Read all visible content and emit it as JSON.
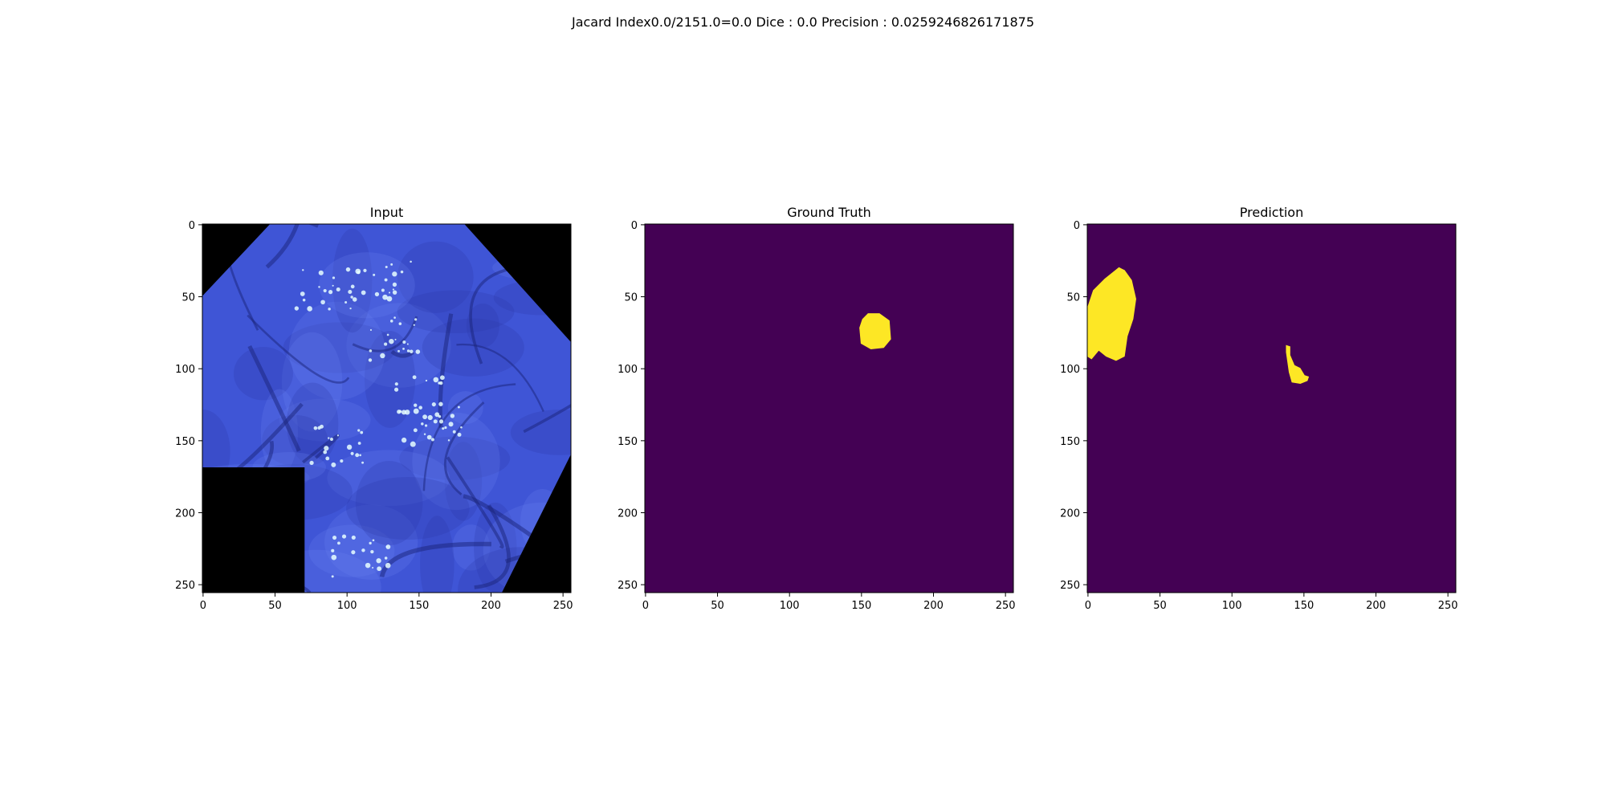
{
  "suptitle": "Jacard Index0.0/2151.0=0.0 Dice : 0.0 Precision : 0.0259246826171875",
  "colors": {
    "background": "#440154",
    "mask": "#fde725",
    "tissue_dark": "#2a36a8",
    "tissue_mid": "#3f55d6",
    "tissue_light": "#6680f0",
    "specular": "#e8ffff",
    "black": "#000000"
  },
  "chart_data": [
    {
      "type": "heatmap",
      "title": "Input",
      "xticks": [
        0,
        50,
        100,
        150,
        200,
        250
      ],
      "yticks": [
        0,
        50,
        100,
        150,
        200,
        250
      ],
      "xlim": [
        0,
        256
      ],
      "ylim": [
        256,
        0
      ],
      "image_content": "endoscopic image of blue-stained colon tissue with black corners and a black square in the lower-left region",
      "black_regions": [
        {
          "shape": "polygon",
          "points": [
            [
              0,
              0
            ],
            [
              47,
              0
            ],
            [
              0,
              50
            ]
          ]
        },
        {
          "shape": "polygon",
          "points": [
            [
              182,
              0
            ],
            [
              256,
              0
            ],
            [
              256,
              82
            ]
          ]
        },
        {
          "shape": "polygon",
          "points": [
            [
              256,
              160
            ],
            [
              256,
              256
            ],
            [
              208,
              256
            ]
          ]
        },
        {
          "shape": "rect",
          "x": [
            0,
            71
          ],
          "y": [
            169,
            256
          ]
        }
      ]
    },
    {
      "type": "heatmap",
      "title": "Ground Truth",
      "xticks": [
        0,
        50,
        100,
        150,
        200,
        250
      ],
      "yticks": [
        0,
        50,
        100,
        150,
        200,
        250
      ],
      "xlim": [
        0,
        256
      ],
      "ylim": [
        256,
        0
      ],
      "values": [
        0,
        1
      ],
      "mask_regions": [
        {
          "label": 1,
          "polygon": [
            [
              155,
              62
            ],
            [
              163,
              62
            ],
            [
              170,
              67
            ],
            [
              171,
              80
            ],
            [
              166,
              86
            ],
            [
              157,
              87
            ],
            [
              150,
              83
            ],
            [
              149,
              72
            ],
            [
              151,
              66
            ]
          ]
        }
      ]
    },
    {
      "type": "heatmap",
      "title": "Prediction",
      "xticks": [
        0,
        50,
        100,
        150,
        200,
        250
      ],
      "yticks": [
        0,
        50,
        100,
        150,
        200,
        250
      ],
      "xlim": [
        0,
        256
      ],
      "ylim": [
        256,
        0
      ],
      "values": [
        0,
        1
      ],
      "mask_regions": [
        {
          "label": 1,
          "polygon": [
            [
              22,
              30
            ],
            [
              26,
              32
            ],
            [
              31,
              39
            ],
            [
              34,
              52
            ],
            [
              32,
              66
            ],
            [
              28,
              78
            ],
            [
              26,
              92
            ],
            [
              20,
              95
            ],
            [
              13,
              92
            ],
            [
              8,
              88
            ],
            [
              3,
              94
            ],
            [
              0,
              92
            ],
            [
              0,
              58
            ],
            [
              4,
              46
            ],
            [
              12,
              38
            ]
          ]
        },
        {
          "label": 1,
          "polygon": [
            [
              138,
              84
            ],
            [
              141,
              85
            ],
            [
              141,
              91
            ],
            [
              144,
              98
            ],
            [
              148,
              100
            ],
            [
              151,
              105
            ],
            [
              154,
              106
            ],
            [
              153,
              109
            ],
            [
              148,
              111
            ],
            [
              142,
              110
            ],
            [
              140,
              103
            ],
            [
              139,
              96
            ],
            [
              138,
              89
            ]
          ]
        }
      ]
    }
  ]
}
